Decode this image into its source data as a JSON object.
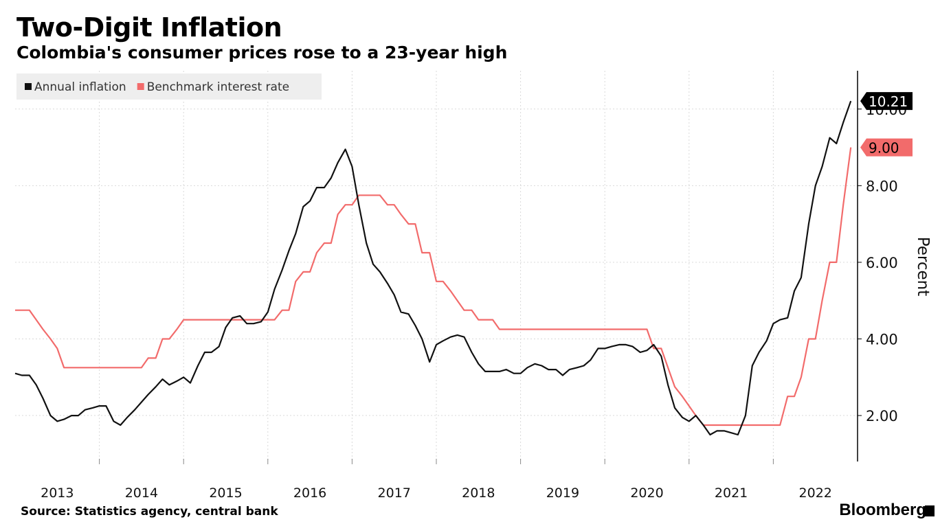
{
  "title": "Two-Digit Inflation",
  "subtitle": "Colombia's consumer prices rose to a 23-year high",
  "source": "Source: Statistics agency, central bank",
  "brand": "Bloomberg",
  "colors": {
    "inflation": "#111111",
    "rate": "#f26b6b",
    "grid": "#d9d9d9",
    "legend_bg": "#eeeeee"
  },
  "chart_data": {
    "type": "line",
    "xlabel": "",
    "ylabel": "Percent",
    "xlim": [
      2012.5,
      2022.5
    ],
    "ylim": [
      0.8,
      11.0
    ],
    "ticks_y": [
      2.0,
      4.0,
      6.0,
      8.0,
      10.0
    ],
    "tick_labels_y": [
      "2.00",
      "4.00",
      "6.00",
      "8.00",
      "10.00"
    ],
    "ticks_x": [
      2013,
      2014,
      2015,
      2016,
      2017,
      2018,
      2019,
      2020,
      2021,
      2022
    ],
    "tick_labels_x": [
      "2013",
      "2014",
      "2015",
      "2016",
      "2017",
      "2018",
      "2019",
      "2020",
      "2021",
      "2022"
    ],
    "legend": "top-left",
    "grid": true,
    "series": [
      {
        "name": "Annual inflation",
        "color": "#111111",
        "end_label": "10.21",
        "points": [
          [
            2012.5,
            3.1
          ],
          [
            2012.58,
            3.05
          ],
          [
            2012.67,
            3.05
          ],
          [
            2012.75,
            2.8
          ],
          [
            2012.83,
            2.45
          ],
          [
            2012.92,
            2.0
          ],
          [
            2013.0,
            1.85
          ],
          [
            2013.08,
            1.9
          ],
          [
            2013.17,
            2.0
          ],
          [
            2013.25,
            2.0
          ],
          [
            2013.33,
            2.15
          ],
          [
            2013.42,
            2.2
          ],
          [
            2013.5,
            2.25
          ],
          [
            2013.58,
            2.25
          ],
          [
            2013.67,
            1.85
          ],
          [
            2013.75,
            1.75
          ],
          [
            2013.83,
            1.95
          ],
          [
            2013.92,
            2.15
          ],
          [
            2014.0,
            2.35
          ],
          [
            2014.08,
            2.55
          ],
          [
            2014.17,
            2.75
          ],
          [
            2014.25,
            2.95
          ],
          [
            2014.33,
            2.8
          ],
          [
            2014.42,
            2.9
          ],
          [
            2014.5,
            3.0
          ],
          [
            2014.58,
            2.85
          ],
          [
            2014.67,
            3.3
          ],
          [
            2014.75,
            3.65
          ],
          [
            2014.83,
            3.65
          ],
          [
            2014.92,
            3.8
          ],
          [
            2015.0,
            4.3
          ],
          [
            2015.08,
            4.55
          ],
          [
            2015.17,
            4.6
          ],
          [
            2015.25,
            4.4
          ],
          [
            2015.33,
            4.4
          ],
          [
            2015.42,
            4.45
          ],
          [
            2015.5,
            4.7
          ],
          [
            2015.58,
            5.3
          ],
          [
            2015.67,
            5.8
          ],
          [
            2015.75,
            6.3
          ],
          [
            2015.83,
            6.75
          ],
          [
            2015.92,
            7.45
          ],
          [
            2016.0,
            7.6
          ],
          [
            2016.08,
            7.95
          ],
          [
            2016.17,
            7.95
          ],
          [
            2016.25,
            8.2
          ],
          [
            2016.33,
            8.6
          ],
          [
            2016.42,
            8.95
          ],
          [
            2016.5,
            8.5
          ],
          [
            2016.58,
            7.5
          ],
          [
            2016.67,
            6.5
          ],
          [
            2016.75,
            5.95
          ],
          [
            2016.83,
            5.75
          ],
          [
            2016.92,
            5.45
          ],
          [
            2017.0,
            5.15
          ],
          [
            2017.08,
            4.7
          ],
          [
            2017.17,
            4.65
          ],
          [
            2017.25,
            4.35
          ],
          [
            2017.33,
            4.0
          ],
          [
            2017.42,
            3.4
          ],
          [
            2017.5,
            3.85
          ],
          [
            2017.58,
            3.95
          ],
          [
            2017.67,
            4.05
          ],
          [
            2017.75,
            4.1
          ],
          [
            2017.83,
            4.05
          ],
          [
            2017.92,
            3.65
          ],
          [
            2018.0,
            3.35
          ],
          [
            2018.08,
            3.15
          ],
          [
            2018.17,
            3.15
          ],
          [
            2018.25,
            3.15
          ],
          [
            2018.33,
            3.2
          ],
          [
            2018.42,
            3.1
          ],
          [
            2018.5,
            3.1
          ],
          [
            2018.58,
            3.25
          ],
          [
            2018.67,
            3.35
          ],
          [
            2018.75,
            3.3
          ],
          [
            2018.83,
            3.2
          ],
          [
            2018.92,
            3.2
          ],
          [
            2019.0,
            3.05
          ],
          [
            2019.08,
            3.2
          ],
          [
            2019.17,
            3.25
          ],
          [
            2019.25,
            3.3
          ],
          [
            2019.33,
            3.45
          ],
          [
            2019.42,
            3.75
          ],
          [
            2019.5,
            3.75
          ],
          [
            2019.58,
            3.8
          ],
          [
            2019.67,
            3.85
          ],
          [
            2019.75,
            3.85
          ],
          [
            2019.83,
            3.8
          ],
          [
            2019.92,
            3.65
          ],
          [
            2020.0,
            3.7
          ],
          [
            2020.08,
            3.85
          ],
          [
            2020.17,
            3.55
          ],
          [
            2020.25,
            2.8
          ],
          [
            2020.33,
            2.2
          ],
          [
            2020.42,
            1.95
          ],
          [
            2020.5,
            1.85
          ],
          [
            2020.58,
            2.0
          ],
          [
            2020.67,
            1.75
          ],
          [
            2020.75,
            1.5
          ],
          [
            2020.83,
            1.6
          ],
          [
            2020.92,
            1.6
          ],
          [
            2021.0,
            1.55
          ],
          [
            2021.08,
            1.5
          ],
          [
            2021.17,
            2.0
          ],
          [
            2021.25,
            3.3
          ],
          [
            2021.33,
            3.65
          ],
          [
            2021.42,
            3.95
          ],
          [
            2021.5,
            4.4
          ],
          [
            2021.58,
            4.5
          ],
          [
            2021.67,
            4.55
          ],
          [
            2021.75,
            5.25
          ],
          [
            2021.83,
            5.6
          ],
          [
            2021.92,
            7.0
          ],
          [
            2022.0,
            8.0
          ],
          [
            2022.08,
            8.5
          ],
          [
            2022.17,
            9.25
          ],
          [
            2022.25,
            9.1
          ],
          [
            2022.33,
            9.65
          ],
          [
            2022.42,
            10.21
          ]
        ]
      },
      {
        "name": "Benchmark interest rate",
        "color": "#f26b6b",
        "end_label": "9.00",
        "points": [
          [
            2012.5,
            4.75
          ],
          [
            2012.67,
            4.75
          ],
          [
            2012.75,
            4.5
          ],
          [
            2012.83,
            4.25
          ],
          [
            2012.92,
            4.0
          ],
          [
            2013.0,
            3.75
          ],
          [
            2013.08,
            3.25
          ],
          [
            2013.83,
            3.25
          ],
          [
            2014.0,
            3.25
          ],
          [
            2014.08,
            3.5
          ],
          [
            2014.17,
            3.5
          ],
          [
            2014.25,
            4.0
          ],
          [
            2014.33,
            4.0
          ],
          [
            2014.42,
            4.25
          ],
          [
            2014.5,
            4.5
          ],
          [
            2015.58,
            4.5
          ],
          [
            2015.67,
            4.75
          ],
          [
            2015.75,
            4.75
          ],
          [
            2015.83,
            5.5
          ],
          [
            2015.92,
            5.75
          ],
          [
            2016.0,
            5.75
          ],
          [
            2016.08,
            6.25
          ],
          [
            2016.17,
            6.5
          ],
          [
            2016.25,
            6.5
          ],
          [
            2016.33,
            7.25
          ],
          [
            2016.42,
            7.5
          ],
          [
            2016.5,
            7.5
          ],
          [
            2016.58,
            7.75
          ],
          [
            2016.67,
            7.75
          ],
          [
            2016.83,
            7.75
          ],
          [
            2016.92,
            7.5
          ],
          [
            2017.0,
            7.5
          ],
          [
            2017.08,
            7.25
          ],
          [
            2017.17,
            7.0
          ],
          [
            2017.25,
            7.0
          ],
          [
            2017.33,
            6.25
          ],
          [
            2017.42,
            6.25
          ],
          [
            2017.5,
            5.5
          ],
          [
            2017.58,
            5.5
          ],
          [
            2017.67,
            5.25
          ],
          [
            2017.75,
            5.0
          ],
          [
            2017.83,
            4.75
          ],
          [
            2017.92,
            4.75
          ],
          [
            2018.0,
            4.5
          ],
          [
            2018.17,
            4.5
          ],
          [
            2018.25,
            4.25
          ],
          [
            2019.17,
            4.25
          ],
          [
            2019.92,
            4.25
          ],
          [
            2020.0,
            4.25
          ],
          [
            2020.08,
            3.75
          ],
          [
            2020.17,
            3.75
          ],
          [
            2020.25,
            3.25
          ],
          [
            2020.33,
            2.75
          ],
          [
            2020.42,
            2.5
          ],
          [
            2020.5,
            2.25
          ],
          [
            2020.58,
            2.0
          ],
          [
            2020.67,
            1.75
          ],
          [
            2021.0,
            1.75
          ],
          [
            2021.58,
            1.75
          ],
          [
            2021.67,
            2.5
          ],
          [
            2021.75,
            2.5
          ],
          [
            2021.83,
            3.0
          ],
          [
            2021.92,
            4.0
          ],
          [
            2022.0,
            4.0
          ],
          [
            2022.08,
            5.0
          ],
          [
            2022.17,
            6.0
          ],
          [
            2022.25,
            6.0
          ],
          [
            2022.33,
            7.5
          ],
          [
            2022.42,
            9.0
          ]
        ]
      }
    ]
  }
}
